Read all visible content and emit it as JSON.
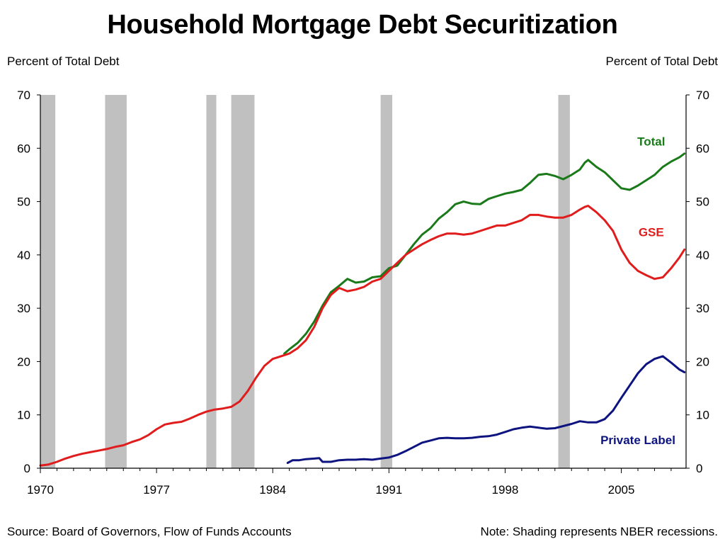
{
  "title": "Household Mortgage Debt Securitization",
  "footer": {
    "source": "Source: Board of Governors, Flow of Funds Accounts",
    "note": "Note: Shading represents NBER recessions."
  },
  "chart_data": {
    "type": "line",
    "title": "Household Mortgage Debt Securitization",
    "ylabel_left": "Percent of Total Debt",
    "ylabel_right": "Percent of Total Debt",
    "xlim": [
      1970,
      2008.9
    ],
    "ylim": [
      0,
      70
    ],
    "x_ticks": [
      1970,
      1977,
      1984,
      1991,
      1998,
      2005
    ],
    "y_ticks": [
      0,
      10,
      20,
      30,
      40,
      50,
      60,
      70
    ],
    "grid": false,
    "legend": "inline labels at line ends",
    "recessions": [
      {
        "start": 1970.0,
        "end": 1970.9
      },
      {
        "start": 1973.9,
        "end": 1975.2
      },
      {
        "start": 1980.0,
        "end": 1980.6
      },
      {
        "start": 1981.5,
        "end": 1982.9
      },
      {
        "start": 1990.5,
        "end": 1991.2
      },
      {
        "start": 2001.2,
        "end": 2001.9
      }
    ],
    "series": [
      {
        "name": "Total",
        "color": "#1a7a1a",
        "label_at": {
          "x": 2006.8,
          "y": 60.5
        },
        "points": [
          [
            1984.7,
            21.5
          ],
          [
            1985,
            22.3
          ],
          [
            1985.5,
            23.5
          ],
          [
            1986,
            25.2
          ],
          [
            1986.5,
            27.5
          ],
          [
            1987,
            30.5
          ],
          [
            1987.5,
            33
          ],
          [
            1988,
            34.2
          ],
          [
            1988.5,
            35.5
          ],
          [
            1989,
            34.8
          ],
          [
            1989.5,
            35
          ],
          [
            1990,
            35.8
          ],
          [
            1990.5,
            36
          ],
          [
            1991,
            37.5
          ],
          [
            1991.5,
            38
          ],
          [
            1992,
            40
          ],
          [
            1992.5,
            42
          ],
          [
            1993,
            43.8
          ],
          [
            1993.5,
            45
          ],
          [
            1994,
            46.8
          ],
          [
            1994.5,
            48
          ],
          [
            1995,
            49.5
          ],
          [
            1995.5,
            50
          ],
          [
            1996,
            49.6
          ],
          [
            1996.5,
            49.5
          ],
          [
            1997,
            50.5
          ],
          [
            1997.5,
            51
          ],
          [
            1998,
            51.5
          ],
          [
            1998.5,
            51.8
          ],
          [
            1999,
            52.2
          ],
          [
            1999.5,
            53.5
          ],
          [
            2000,
            55
          ],
          [
            2000.5,
            55.2
          ],
          [
            2001,
            54.8
          ],
          [
            2001.5,
            54.2
          ],
          [
            2002,
            55
          ],
          [
            2002.5,
            56
          ],
          [
            2002.8,
            57.3
          ],
          [
            2003,
            57.8
          ],
          [
            2003.5,
            56.5
          ],
          [
            2004,
            55.5
          ],
          [
            2004.5,
            54
          ],
          [
            2005,
            52.5
          ],
          [
            2005.5,
            52.2
          ],
          [
            2006,
            53
          ],
          [
            2006.5,
            54
          ],
          [
            2007,
            55
          ],
          [
            2007.5,
            56.5
          ],
          [
            2008,
            57.5
          ],
          [
            2008.5,
            58.3
          ],
          [
            2008.8,
            59
          ]
        ]
      },
      {
        "name": "GSE",
        "color": "#e01c1c",
        "label_at": {
          "x": 2006.8,
          "y": 43.5
        },
        "points": [
          [
            1970,
            0.5
          ],
          [
            1970.5,
            0.7
          ],
          [
            1971,
            1.2
          ],
          [
            1971.5,
            1.8
          ],
          [
            1972,
            2.3
          ],
          [
            1972.5,
            2.7
          ],
          [
            1973,
            3.0
          ],
          [
            1973.5,
            3.3
          ],
          [
            1974,
            3.6
          ],
          [
            1974.5,
            4.0
          ],
          [
            1975,
            4.3
          ],
          [
            1975.5,
            4.9
          ],
          [
            1976,
            5.4
          ],
          [
            1976.5,
            6.2
          ],
          [
            1977,
            7.3
          ],
          [
            1977.5,
            8.2
          ],
          [
            1978,
            8.5
          ],
          [
            1978.5,
            8.7
          ],
          [
            1979,
            9.3
          ],
          [
            1979.5,
            10.0
          ],
          [
            1980,
            10.6
          ],
          [
            1980.5,
            11.0
          ],
          [
            1981,
            11.2
          ],
          [
            1981.5,
            11.5
          ],
          [
            1982,
            12.5
          ],
          [
            1982.5,
            14.5
          ],
          [
            1983,
            17
          ],
          [
            1983.5,
            19.2
          ],
          [
            1984,
            20.5
          ],
          [
            1984.5,
            21
          ],
          [
            1985,
            21.5
          ],
          [
            1985.5,
            22.5
          ],
          [
            1986,
            24
          ],
          [
            1986.5,
            26.5
          ],
          [
            1987,
            30
          ],
          [
            1987.5,
            32.5
          ],
          [
            1988,
            33.8
          ],
          [
            1988.5,
            33.2
          ],
          [
            1989,
            33.5
          ],
          [
            1989.5,
            34
          ],
          [
            1990,
            35
          ],
          [
            1990.5,
            35.5
          ],
          [
            1991,
            37
          ],
          [
            1991.5,
            38.5
          ],
          [
            1992,
            40
          ],
          [
            1992.5,
            41
          ],
          [
            1993,
            42
          ],
          [
            1993.5,
            42.8
          ],
          [
            1994,
            43.5
          ],
          [
            1994.5,
            44
          ],
          [
            1995,
            44
          ],
          [
            1995.5,
            43.8
          ],
          [
            1996,
            44
          ],
          [
            1996.5,
            44.5
          ],
          [
            1997,
            45
          ],
          [
            1997.5,
            45.5
          ],
          [
            1998,
            45.5
          ],
          [
            1998.5,
            46
          ],
          [
            1999,
            46.5
          ],
          [
            1999.5,
            47.5
          ],
          [
            2000,
            47.5
          ],
          [
            2000.5,
            47.2
          ],
          [
            2001,
            47
          ],
          [
            2001.5,
            47
          ],
          [
            2002,
            47.5
          ],
          [
            2002.5,
            48.5
          ],
          [
            2002.8,
            49
          ],
          [
            2003,
            49.2
          ],
          [
            2003.5,
            48
          ],
          [
            2004,
            46.5
          ],
          [
            2004.5,
            44.5
          ],
          [
            2005,
            41
          ],
          [
            2005.5,
            38.5
          ],
          [
            2006,
            37
          ],
          [
            2006.5,
            36.2
          ],
          [
            2007,
            35.5
          ],
          [
            2007.5,
            35.8
          ],
          [
            2008,
            37.5
          ],
          [
            2008.5,
            39.5
          ],
          [
            2008.8,
            41
          ]
        ]
      },
      {
        "name": "Private Label",
        "color": "#0d1480",
        "label_at": {
          "x": 2006.0,
          "y": 4.5
        },
        "points": [
          [
            1984.9,
            1.0
          ],
          [
            1985.2,
            1.5
          ],
          [
            1985.6,
            1.5
          ],
          [
            1986,
            1.7
          ],
          [
            1986.5,
            1.8
          ],
          [
            1986.8,
            1.9
          ],
          [
            1987,
            1.2
          ],
          [
            1987.5,
            1.2
          ],
          [
            1988,
            1.5
          ],
          [
            1988.5,
            1.6
          ],
          [
            1989,
            1.6
          ],
          [
            1989.5,
            1.7
          ],
          [
            1990,
            1.6
          ],
          [
            1990.5,
            1.8
          ],
          [
            1991,
            2.0
          ],
          [
            1991.5,
            2.5
          ],
          [
            1992,
            3.2
          ],
          [
            1992.5,
            4.0
          ],
          [
            1993,
            4.8
          ],
          [
            1993.5,
            5.2
          ],
          [
            1994,
            5.6
          ],
          [
            1994.5,
            5.7
          ],
          [
            1995,
            5.6
          ],
          [
            1995.5,
            5.6
          ],
          [
            1996,
            5.7
          ],
          [
            1996.5,
            5.9
          ],
          [
            1997,
            6.0
          ],
          [
            1997.5,
            6.3
          ],
          [
            1998,
            6.8
          ],
          [
            1998.5,
            7.3
          ],
          [
            1999,
            7.6
          ],
          [
            1999.5,
            7.8
          ],
          [
            2000,
            7.6
          ],
          [
            2000.5,
            7.4
          ],
          [
            2001,
            7.5
          ],
          [
            2001.5,
            7.9
          ],
          [
            2002,
            8.3
          ],
          [
            2002.5,
            8.8
          ],
          [
            2003,
            8.6
          ],
          [
            2003.5,
            8.6
          ],
          [
            2004,
            9.2
          ],
          [
            2004.5,
            10.8
          ],
          [
            2005,
            13.2
          ],
          [
            2005.5,
            15.5
          ],
          [
            2006,
            17.8
          ],
          [
            2006.5,
            19.5
          ],
          [
            2007,
            20.5
          ],
          [
            2007.5,
            21
          ],
          [
            2008,
            19.8
          ],
          [
            2008.5,
            18.5
          ],
          [
            2008.8,
            18
          ]
        ]
      }
    ]
  }
}
